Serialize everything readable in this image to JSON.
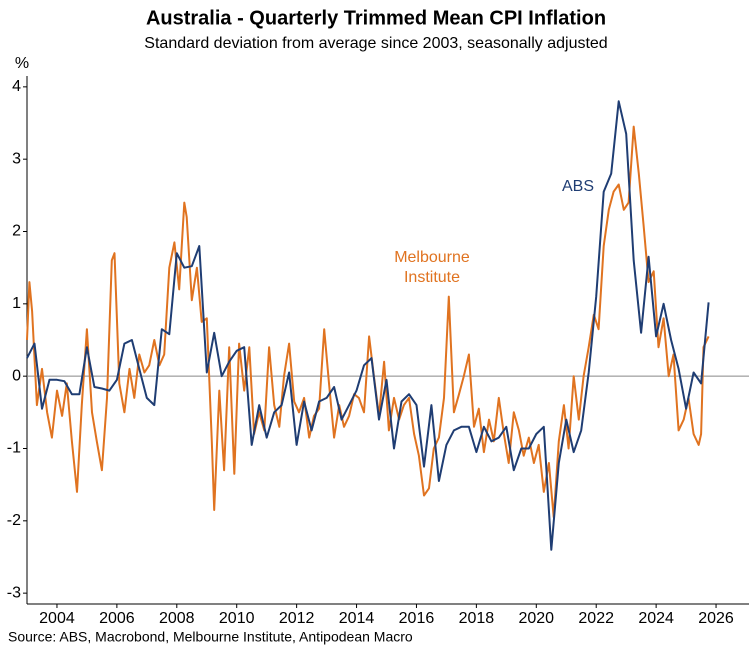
{
  "chart_data": {
    "type": "line",
    "title": "Australia - Quarterly Trimmed Mean CPI Inflation",
    "subtitle": "Standard deviation from average since 2003, seasonally adjusted",
    "y_label": "%",
    "source": "Source: ABS, Macrobond, Melbourne Institute, Antipodean Macro",
    "xlim": [
      2003,
      2027.1
    ],
    "xticks": [
      2004,
      2006,
      2008,
      2010,
      2012,
      2014,
      2016,
      2018,
      2020,
      2022,
      2024,
      2026
    ],
    "ylim": [
      -3.15,
      4.15
    ],
    "yticks": [
      -3,
      -2,
      -1,
      0,
      1,
      2,
      3,
      4
    ],
    "series": [
      {
        "name": "ABS",
        "color": "#1f3d73",
        "x": [
          2003.0,
          2003.25,
          2003.5,
          2003.75,
          2004.0,
          2004.25,
          2004.5,
          2004.75,
          2005.0,
          2005.25,
          2005.5,
          2005.75,
          2006.0,
          2006.25,
          2006.5,
          2006.75,
          2007.0,
          2007.25,
          2007.5,
          2007.75,
          2008.0,
          2008.25,
          2008.5,
          2008.75,
          2009.0,
          2009.25,
          2009.5,
          2009.75,
          2010.0,
          2010.25,
          2010.5,
          2010.75,
          2011.0,
          2011.25,
          2011.5,
          2011.75,
          2012.0,
          2012.25,
          2012.5,
          2012.75,
          2013.0,
          2013.25,
          2013.5,
          2013.75,
          2014.0,
          2014.25,
          2014.5,
          2014.75,
          2015.0,
          2015.25,
          2015.5,
          2015.75,
          2016.0,
          2016.25,
          2016.5,
          2016.75,
          2017.0,
          2017.25,
          2017.5,
          2017.75,
          2018.0,
          2018.25,
          2018.5,
          2018.75,
          2019.0,
          2019.25,
          2019.5,
          2019.75,
          2020.0,
          2020.25,
          2020.5,
          2020.75,
          2021.0,
          2021.25,
          2021.5,
          2021.75,
          2022.0,
          2022.25,
          2022.5,
          2022.75,
          2023.0,
          2023.25,
          2023.5,
          2023.75,
          2024.0,
          2024.25,
          2024.5,
          2024.75,
          2025.0,
          2025.25,
          2025.5,
          2025.75
        ],
        "values": [
          0.25,
          0.45,
          -0.45,
          -0.05,
          -0.05,
          -0.07,
          -0.25,
          -0.25,
          0.4,
          -0.15,
          -0.17,
          -0.2,
          -0.05,
          0.45,
          0.5,
          0.1,
          -0.3,
          -0.4,
          0.65,
          0.58,
          1.7,
          1.5,
          1.52,
          1.8,
          0.05,
          0.6,
          0.0,
          0.2,
          0.35,
          0.4,
          -0.95,
          -0.4,
          -0.85,
          -0.5,
          -0.4,
          0.05,
          -0.95,
          -0.35,
          -0.75,
          -0.35,
          -0.3,
          -0.15,
          -0.6,
          -0.4,
          -0.2,
          0.15,
          0.25,
          -0.6,
          -0.05,
          -1.0,
          -0.35,
          -0.25,
          -0.4,
          -1.25,
          -0.4,
          -1.45,
          -0.95,
          -0.75,
          -0.7,
          -0.7,
          -1.05,
          -0.7,
          -0.9,
          -0.85,
          -0.7,
          -1.3,
          -1.0,
          -1.0,
          -0.8,
          -0.7,
          -2.4,
          -1.2,
          -0.6,
          -1.05,
          -0.75,
          0.05,
          1.1,
          2.55,
          2.8,
          3.8,
          3.35,
          1.6,
          0.6,
          1.65,
          0.55,
          1.0,
          0.5,
          0.1,
          -0.45,
          0.05,
          -0.1,
          1.02
        ]
      },
      {
        "name": "Melbourne Institute",
        "color": "#e07320",
        "x": [
          2003.0,
          2003.08,
          2003.17,
          2003.33,
          2003.5,
          2003.67,
          2003.83,
          2004.0,
          2004.17,
          2004.33,
          2004.5,
          2004.67,
          2004.83,
          2005.0,
          2005.17,
          2005.33,
          2005.5,
          2005.67,
          2005.83,
          2005.92,
          2006.08,
          2006.25,
          2006.42,
          2006.58,
          2006.75,
          2006.92,
          2007.08,
          2007.25,
          2007.42,
          2007.58,
          2007.75,
          2007.92,
          2008.08,
          2008.25,
          2008.33,
          2008.5,
          2008.67,
          2008.83,
          2009.0,
          2009.17,
          2009.25,
          2009.42,
          2009.58,
          2009.75,
          2009.92,
          2010.08,
          2010.25,
          2010.42,
          2010.58,
          2010.75,
          2010.92,
          2011.08,
          2011.25,
          2011.42,
          2011.58,
          2011.75,
          2011.92,
          2012.08,
          2012.25,
          2012.42,
          2012.58,
          2012.75,
          2012.92,
          2013.08,
          2013.25,
          2013.42,
          2013.58,
          2013.75,
          2013.92,
          2014.08,
          2014.25,
          2014.42,
          2014.58,
          2014.75,
          2014.92,
          2015.08,
          2015.25,
          2015.42,
          2015.58,
          2015.75,
          2015.92,
          2016.08,
          2016.25,
          2016.42,
          2016.58,
          2016.75,
          2016.92,
          2017.08,
          2017.25,
          2017.42,
          2017.58,
          2017.75,
          2017.92,
          2018.08,
          2018.25,
          2018.42,
          2018.58,
          2018.75,
          2018.92,
          2019.08,
          2019.25,
          2019.42,
          2019.58,
          2019.75,
          2019.92,
          2020.08,
          2020.25,
          2020.42,
          2020.58,
          2020.75,
          2020.92,
          2021.08,
          2021.25,
          2021.42,
          2021.58,
          2021.75,
          2021.92,
          2022.08,
          2022.25,
          2022.42,
          2022.58,
          2022.75,
          2022.92,
          2023.08,
          2023.25,
          2023.42,
          2023.58,
          2023.75,
          2023.92,
          2024.08,
          2024.25,
          2024.42,
          2024.58,
          2024.75,
          2024.92,
          2025.08,
          2025.25,
          2025.42,
          2025.5,
          2025.58,
          2025.75
        ],
        "values": [
          0.5,
          1.3,
          0.9,
          -0.4,
          0.1,
          -0.5,
          -0.85,
          -0.2,
          -0.55,
          -0.1,
          -0.9,
          -1.6,
          -0.4,
          0.65,
          -0.5,
          -0.9,
          -1.3,
          -0.3,
          1.6,
          1.7,
          -0.1,
          -0.5,
          0.1,
          -0.3,
          0.3,
          0.05,
          0.15,
          0.5,
          0.15,
          0.3,
          1.5,
          1.85,
          1.2,
          2.4,
          2.2,
          1.05,
          1.5,
          0.75,
          0.8,
          -0.9,
          -1.85,
          -0.2,
          -1.3,
          0.4,
          -1.35,
          0.45,
          -0.2,
          0.4,
          -0.8,
          -0.5,
          -0.75,
          0.4,
          -0.4,
          -0.7,
          0.0,
          0.45,
          -0.35,
          -0.5,
          -0.3,
          -0.85,
          -0.55,
          -0.45,
          0.65,
          -0.1,
          -0.85,
          -0.4,
          -0.7,
          -0.55,
          -0.25,
          -0.3,
          -0.5,
          0.55,
          0.0,
          -0.55,
          0.2,
          -0.75,
          -0.3,
          -0.6,
          -0.4,
          -0.3,
          -0.8,
          -1.1,
          -1.65,
          -1.55,
          -1.0,
          -0.85,
          -0.3,
          1.1,
          -0.5,
          -0.25,
          0.0,
          0.3,
          -0.7,
          -0.45,
          -1.05,
          -0.6,
          -0.9,
          -0.3,
          -0.8,
          -1.2,
          -0.5,
          -0.75,
          -1.1,
          -0.85,
          -1.2,
          -0.95,
          -1.6,
          -1.2,
          -1.95,
          -0.9,
          -0.4,
          -1.0,
          0.0,
          -0.6,
          0.0,
          0.4,
          0.85,
          0.65,
          1.8,
          2.3,
          2.55,
          2.65,
          2.3,
          2.4,
          3.45,
          2.8,
          2.1,
          1.3,
          1.45,
          0.4,
          0.8,
          0.0,
          0.3,
          -0.75,
          -0.6,
          -0.3,
          -0.8,
          -0.95,
          -0.8,
          0.4,
          0.55
        ]
      }
    ]
  }
}
